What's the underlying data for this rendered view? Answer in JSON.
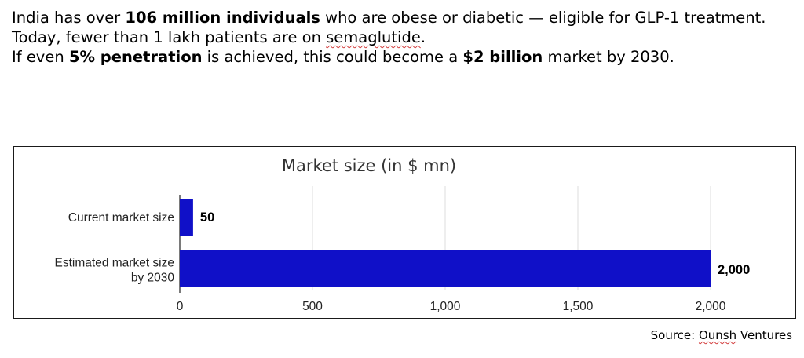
{
  "intro": {
    "line1_pre": "India has over ",
    "line1_bold": "106 million individuals",
    "line1_post": " who are obese or diabetic — eligible for GLP-1 treatment.",
    "line2_pre": "Today, fewer than 1 lakh patients are on ",
    "line2_word": "semaglutide",
    "line2_post": ".",
    "line3_pre": "If even ",
    "line3_bold1": "5% penetration",
    "line3_mid": " is achieved, this could become a ",
    "line3_bold2": "$2 billion",
    "line3_post": " market by 2030."
  },
  "source": {
    "prefix": "Source: ",
    "name": "Ounsh",
    "suffix": " Ventures"
  },
  "colors": {
    "bar": "#1010c8",
    "grid": "#dcdcdc",
    "text": "#222222"
  },
  "chart_data": {
    "type": "bar",
    "orientation": "horizontal",
    "title": "Market size (in $ mn)",
    "categories": [
      [
        "Current market size"
      ],
      [
        "Estimated market size",
        "by 2030"
      ]
    ],
    "values": [
      50,
      2000
    ],
    "data_labels": [
      "50",
      "2,000"
    ],
    "xlim": [
      0,
      2000
    ],
    "xticks": [
      0,
      500,
      1000,
      1500,
      2000
    ],
    "xtick_labels": [
      "0",
      "500",
      "1,000",
      "1,500",
      "2,000"
    ],
    "grid": true
  }
}
